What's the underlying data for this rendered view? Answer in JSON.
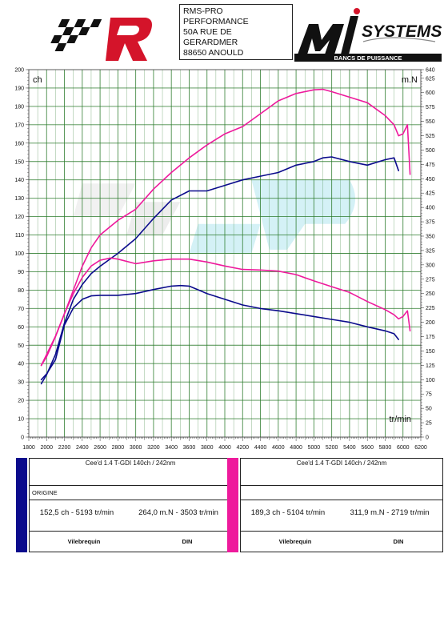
{
  "header": {
    "address_lines": [
      "RMS-PRO",
      "PERFORMANCE",
      "50A RUE DE",
      "GERARDMER",
      "88650 ANOULD"
    ],
    "right_logo_top": "SYSTEMS",
    "right_logo_sub": "BANCS DE PUISSANCE"
  },
  "colors": {
    "origin": "#0b0b8c",
    "tuned": "#ee1a9c",
    "grid": "#2a7a2a",
    "watermark": "#cfeff5"
  },
  "chart_data": {
    "type": "line",
    "x_unit_label": "tr/min",
    "y_left_unit": "ch",
    "y_right_unit": "m.N",
    "xlim": [
      1800,
      6200
    ],
    "ylim_left": [
      0,
      200
    ],
    "ylim_right": [
      0,
      640
    ],
    "x_ticks": [
      1800,
      2000,
      2200,
      2400,
      2600,
      2800,
      3000,
      3200,
      3400,
      3600,
      3800,
      4000,
      4200,
      4400,
      4600,
      4800,
      5000,
      5200,
      5400,
      5600,
      5800,
      6000,
      6200
    ],
    "y_left_ticks": [
      0,
      10,
      20,
      30,
      40,
      50,
      60,
      70,
      80,
      90,
      100,
      110,
      120,
      130,
      140,
      150,
      160,
      170,
      180,
      190,
      200
    ],
    "y_right_ticks": [
      0,
      25,
      50,
      75,
      100,
      125,
      150,
      175,
      200,
      225,
      250,
      275,
      300,
      325,
      350,
      375,
      400,
      425,
      450,
      475,
      500,
      525,
      550,
      575,
      600,
      625,
      640
    ],
    "grid": true,
    "series": [
      {
        "key": "origin_power",
        "color": "origin",
        "axis": "left",
        "x": [
          1940,
          2000,
          2100,
          2200,
          2300,
          2400,
          2500,
          2600,
          2800,
          3000,
          3200,
          3400,
          3600,
          3800,
          4000,
          4200,
          4400,
          4600,
          4800,
          5000,
          5100,
          5200,
          5400,
          5600,
          5800,
          5900,
          5950
        ],
        "y": [
          29,
          34,
          45,
          62,
          75,
          83,
          89,
          93,
          100,
          108,
          119,
          129,
          134,
          134,
          137,
          140,
          142,
          144,
          148,
          150,
          152,
          152.5,
          150,
          148,
          151,
          152,
          145
        ]
      },
      {
        "key": "origin_torque",
        "color": "origin",
        "axis": "right",
        "x": [
          1940,
          2000,
          2100,
          2200,
          2300,
          2400,
          2500,
          2600,
          2800,
          3000,
          3200,
          3400,
          3503,
          3600,
          3800,
          4000,
          4200,
          4400,
          4600,
          4800,
          5000,
          5200,
          5400,
          5600,
          5800,
          5900,
          5950
        ],
        "y": [
          100,
          110,
          135,
          195,
          225,
          240,
          246,
          247,
          247,
          250,
          257,
          263,
          264,
          263,
          250,
          240,
          230,
          224,
          220,
          215,
          210,
          205,
          200,
          192,
          185,
          180,
          170
        ]
      },
      {
        "key": "tuned_power",
        "color": "tuned",
        "axis": "left",
        "x": [
          1940,
          2000,
          2100,
          2200,
          2300,
          2400,
          2500,
          2600,
          2800,
          3000,
          3200,
          3400,
          3600,
          3800,
          4000,
          4200,
          4400,
          4600,
          4800,
          5000,
          5104,
          5200,
          5400,
          5600,
          5800,
          5900,
          5950,
          6000,
          6050,
          6080
        ],
        "y": [
          39,
          45,
          55,
          67,
          80,
          93,
          103,
          110,
          118,
          124,
          135,
          144,
          152,
          159,
          165,
          169,
          176,
          183,
          187,
          189,
          189.3,
          188,
          185,
          182,
          175,
          170,
          164,
          165,
          170,
          143
        ]
      },
      {
        "key": "tuned_torque",
        "color": "tuned",
        "axis": "right",
        "x": [
          1940,
          2000,
          2100,
          2200,
          2300,
          2400,
          2500,
          2600,
          2719,
          2800,
          3000,
          3200,
          3400,
          3600,
          3800,
          4000,
          4200,
          4400,
          4600,
          4800,
          5000,
          5200,
          5400,
          5600,
          5800,
          5900,
          5950,
          6000,
          6050,
          6080
        ],
        "y": [
          125,
          140,
          175,
          215,
          250,
          278,
          298,
          308,
          311.9,
          310,
          302,
          307,
          310,
          310,
          305,
          298,
          292,
          291,
          289,
          283,
          272,
          262,
          252,
          236,
          222,
          213,
          206,
          210,
          220,
          185
        ]
      }
    ]
  },
  "results": [
    {
      "title": "Cee'd 1.4 T-GDI 140ch / 242nm",
      "label": "ORIGINE",
      "power": "152,5 ch - 5193 tr/min",
      "torque": "264,0 m.N - 3503 tr/min",
      "footer_left": "Vilebrequin",
      "footer_right": "DIN"
    },
    {
      "title": "Cee'd 1.4 T-GDI 140ch / 242nm",
      "label": "",
      "power": "189,3 ch - 5104 tr/min",
      "torque": "311,9 m.N - 2719 tr/min",
      "footer_left": "Vilebrequin",
      "footer_right": "DIN"
    }
  ]
}
